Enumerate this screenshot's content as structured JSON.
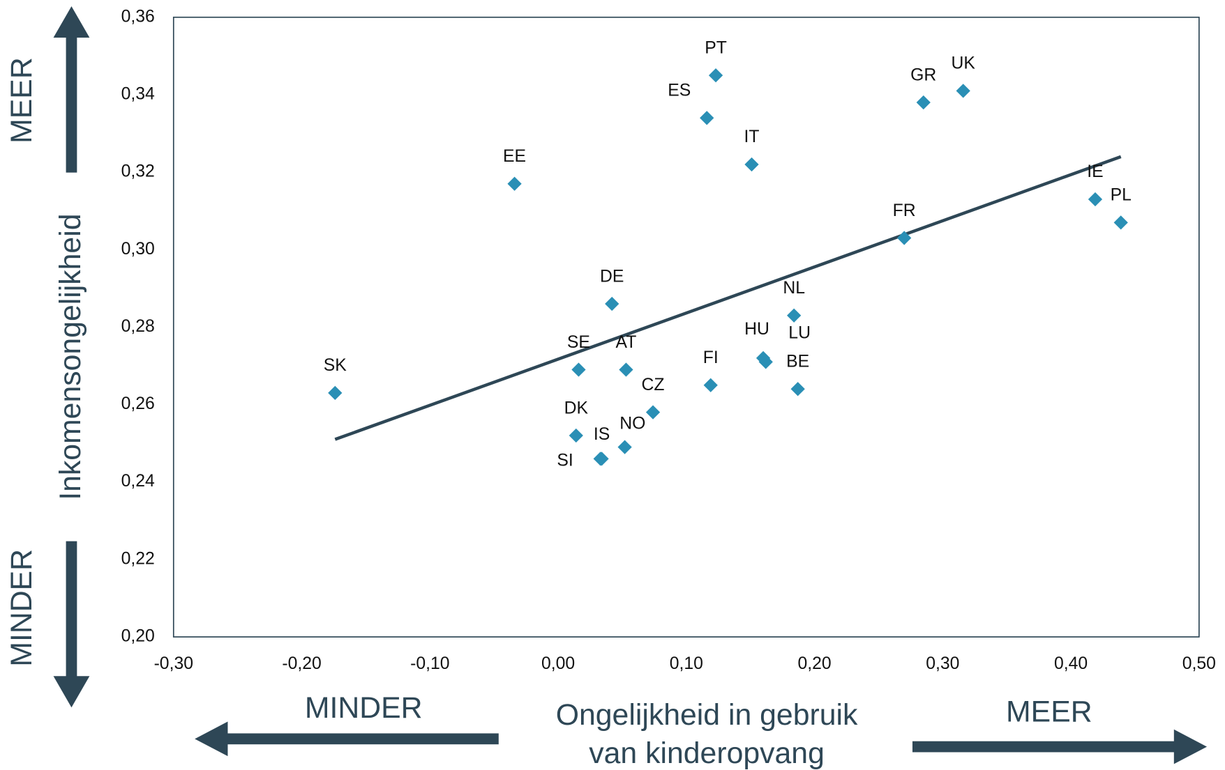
{
  "chart_data": {
    "type": "scatter",
    "x_label": [
      "Ongelijkheid in gebruik",
      "van kinderopvang"
    ],
    "y_label": "Inkomensongelijkheid",
    "annotations": {
      "y_more": "MEER",
      "y_less": "MINDER",
      "x_less": "MINDER",
      "x_more": "MEER"
    },
    "labels": [
      "SK",
      "EE",
      "DE",
      "SE",
      "AT",
      "DK",
      "IS",
      "SI",
      "NO",
      "CZ",
      "FI",
      "PT",
      "ES",
      "IT",
      "HU",
      "LU",
      "NL",
      "BE",
      "FR",
      "GR",
      "UK",
      "IE",
      "PL"
    ],
    "x": [
      -0.174,
      -0.034,
      0.042,
      0.016,
      0.053,
      0.014,
      0.034,
      0.033,
      0.052,
      0.074,
      0.119,
      0.123,
      0.116,
      0.151,
      0.16,
      0.162,
      0.184,
      0.187,
      0.27,
      0.285,
      0.316,
      0.419,
      0.439
    ],
    "y": [
      0.263,
      0.317,
      0.286,
      0.269,
      0.269,
      0.252,
      0.246,
      0.246,
      0.249,
      0.258,
      0.265,
      0.345,
      0.334,
      0.322,
      0.272,
      0.271,
      0.283,
      0.264,
      0.303,
      0.338,
      0.341,
      0.313,
      0.307
    ],
    "color": "#2a8fb5",
    "trendline": {
      "x": [
        -0.174,
        0.439
      ],
      "y": [
        0.251,
        0.324
      ],
      "color": "#2e4756"
    },
    "xlim": [
      -0.3,
      0.5
    ],
    "xticks": [
      {
        "value": -0.3,
        "label": "-0,30"
      },
      {
        "value": -0.2,
        "label": "-0,20"
      },
      {
        "value": -0.1,
        "label": "-0,10"
      },
      {
        "value": 0,
        "label": "0,00"
      },
      {
        "value": 0.1,
        "label": "0,10"
      },
      {
        "value": 0.2,
        "label": "0,20"
      },
      {
        "value": 0.3,
        "label": "0,30"
      },
      {
        "value": 0.4,
        "label": "0,40"
      },
      {
        "value": 0.5,
        "label": "0,50"
      }
    ],
    "ylim": [
      0.2,
      0.36
    ],
    "yticks": [
      {
        "value": 0.2,
        "label": "0,20"
      },
      {
        "value": 0.22,
        "label": "0,22"
      },
      {
        "value": 0.24,
        "label": "0,24"
      },
      {
        "value": 0.26,
        "label": "0,26"
      },
      {
        "value": 0.28,
        "label": "0,28"
      },
      {
        "value": 0.3,
        "label": "0,30"
      },
      {
        "value": 0.32,
        "label": "0,32"
      },
      {
        "value": 0.34,
        "label": "0,34"
      },
      {
        "value": 0.36,
        "label": "0,36"
      }
    ]
  }
}
